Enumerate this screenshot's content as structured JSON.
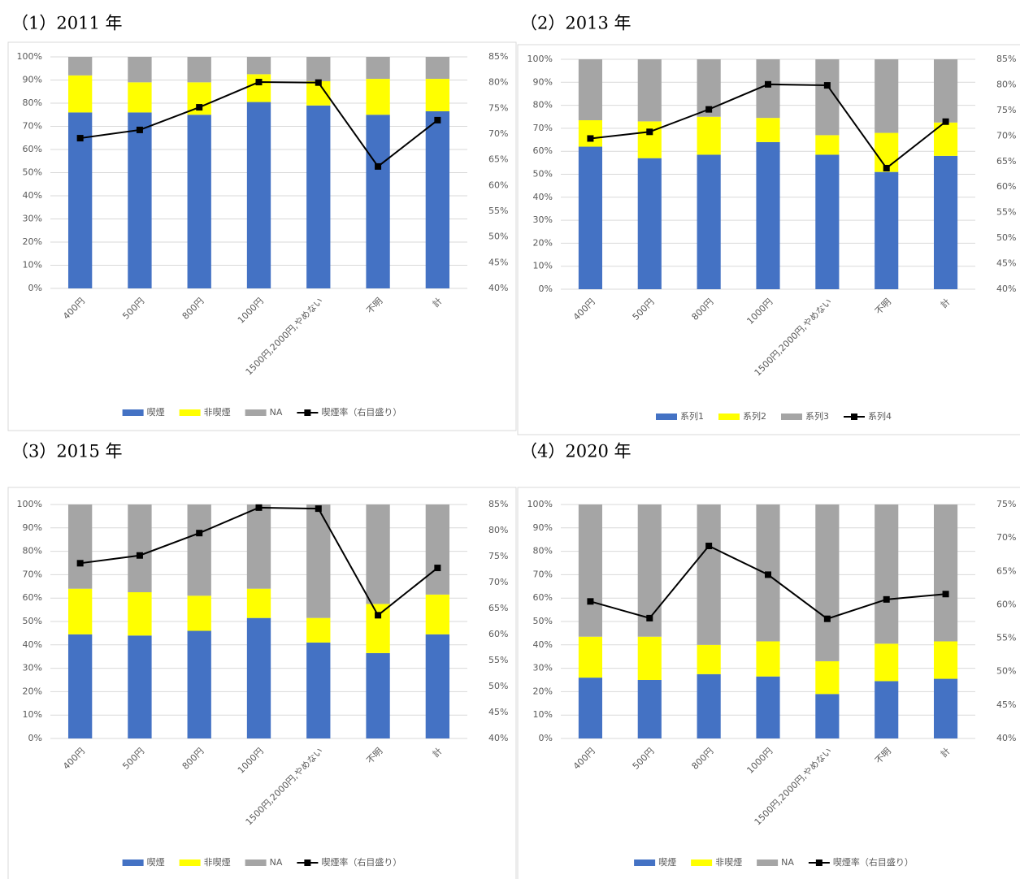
{
  "chart_data": [
    {
      "type": "combo",
      "title": "（1）2011 年",
      "categories": [
        "400円",
        "500円",
        "800円",
        "1000円",
        "1500円,2000円,やめない",
        "不明",
        "計"
      ],
      "series": [
        {
          "name": "喫煙",
          "color": "#4472c4",
          "values": [
            76,
            76,
            75,
            80.5,
            79,
            75,
            76.5
          ]
        },
        {
          "name": "非喫煙",
          "color": "#ffff00",
          "values": [
            16,
            13,
            14,
            12,
            10.5,
            15.5,
            14
          ]
        },
        {
          "name": "NA",
          "color": "#a5a5a5",
          "values": [
            8,
            11,
            11,
            7.5,
            10.5,
            9.5,
            9.5
          ]
        },
        {
          "name": "喫煙率（右目盛り）",
          "color": "#000000",
          "axis": "y2",
          "values": [
            69.2,
            70.8,
            75.2,
            80.1,
            80,
            63.7,
            72.7
          ]
        }
      ],
      "ylim": [
        0,
        100
      ],
      "yticks": [
        {
          "value": 0,
          "label": "0%"
        },
        {
          "value": 10,
          "label": "10%"
        },
        {
          "value": 20,
          "label": "20%"
        },
        {
          "value": 30,
          "label": "30%"
        },
        {
          "value": 40,
          "label": "40%"
        },
        {
          "value": 50,
          "label": "50%"
        },
        {
          "value": 60,
          "label": "60%"
        },
        {
          "value": 70,
          "label": "70%"
        },
        {
          "value": 80,
          "label": "80%"
        },
        {
          "value": 90,
          "label": "90%"
        },
        {
          "value": 100,
          "label": "100%"
        }
      ],
      "y2lim": [
        40,
        85
      ],
      "y2ticks": [
        {
          "value": 40,
          "label": "40%"
        },
        {
          "value": 45,
          "label": "45%"
        },
        {
          "value": 50,
          "label": "50%"
        },
        {
          "value": 55,
          "label": "55%"
        },
        {
          "value": 60,
          "label": "60%"
        },
        {
          "value": 65,
          "label": "65%"
        },
        {
          "value": 70,
          "label": "70%"
        },
        {
          "value": 75,
          "label": "75%"
        },
        {
          "value": 80,
          "label": "80%"
        },
        {
          "value": 85,
          "label": "85%"
        }
      ],
      "grid": true,
      "legend": "bottom"
    },
    {
      "type": "combo",
      "title": "（2）2013 年",
      "categories": [
        "400円",
        "500円",
        "800円",
        "1000円",
        "1500円,2000円,やめない",
        "不明",
        "計"
      ],
      "series": [
        {
          "name": "系列1",
          "color": "#4472c4",
          "values": [
            62,
            57,
            58.5,
            64,
            58.5,
            51,
            58
          ]
        },
        {
          "name": "系列2",
          "color": "#ffff00",
          "values": [
            11.5,
            16,
            16.5,
            10.5,
            8.5,
            17,
            14.5
          ]
        },
        {
          "name": "系列3",
          "color": "#a5a5a5",
          "values": [
            26.5,
            27,
            25,
            25.5,
            33,
            32,
            27.5
          ]
        },
        {
          "name": "系列4",
          "color": "#000000",
          "axis": "y2",
          "values": [
            69.5,
            70.8,
            75.2,
            80.1,
            79.9,
            63.7,
            72.8
          ]
        }
      ],
      "ylim": [
        0,
        100
      ],
      "yticks": [
        {
          "value": 0,
          "label": "0%"
        },
        {
          "value": 10,
          "label": "10%"
        },
        {
          "value": 20,
          "label": "20%"
        },
        {
          "value": 30,
          "label": "30%"
        },
        {
          "value": 40,
          "label": "40%"
        },
        {
          "value": 50,
          "label": "50%"
        },
        {
          "value": 60,
          "label": "60%"
        },
        {
          "value": 70,
          "label": "70%"
        },
        {
          "value": 80,
          "label": "80%"
        },
        {
          "value": 90,
          "label": "90%"
        },
        {
          "value": 100,
          "label": "100%"
        }
      ],
      "y2lim": [
        40,
        85
      ],
      "y2ticks": [
        {
          "value": 40,
          "label": "40%"
        },
        {
          "value": 45,
          "label": "45%"
        },
        {
          "value": 50,
          "label": "50%"
        },
        {
          "value": 55,
          "label": "55%"
        },
        {
          "value": 60,
          "label": "60%"
        },
        {
          "value": 65,
          "label": "65%"
        },
        {
          "value": 70,
          "label": "70%"
        },
        {
          "value": 75,
          "label": "75%"
        },
        {
          "value": 80,
          "label": "80%"
        },
        {
          "value": 85,
          "label": "85%"
        }
      ],
      "grid": true,
      "legend": "bottom"
    },
    {
      "type": "combo",
      "title": "（3）2015 年",
      "categories": [
        "400円",
        "500円",
        "800円",
        "1000円",
        "1500円,2000円,やめない",
        "不明",
        "計"
      ],
      "series": [
        {
          "name": "喫煙",
          "color": "#4472c4",
          "values": [
            44.5,
            44,
            46,
            51.5,
            41,
            36.5,
            44.5
          ]
        },
        {
          "name": "非喫煙",
          "color": "#ffff00",
          "values": [
            19.5,
            18.5,
            15,
            12.5,
            10.5,
            21,
            17
          ]
        },
        {
          "name": "NA",
          "color": "#a5a5a5",
          "values": [
            36,
            37.5,
            39,
            36,
            48.5,
            42.5,
            38.5
          ]
        },
        {
          "name": "喫煙率（右目盛り）",
          "color": "#000000",
          "axis": "y2",
          "values": [
            73.7,
            75.2,
            79.5,
            84.4,
            84.2,
            63.7,
            72.8
          ]
        }
      ],
      "ylim": [
        0,
        100
      ],
      "yticks": [
        {
          "value": 0,
          "label": "0%"
        },
        {
          "value": 10,
          "label": "10%"
        },
        {
          "value": 20,
          "label": "20%"
        },
        {
          "value": 30,
          "label": "30%"
        },
        {
          "value": 40,
          "label": "40%"
        },
        {
          "value": 50,
          "label": "50%"
        },
        {
          "value": 60,
          "label": "60%"
        },
        {
          "value": 70,
          "label": "70%"
        },
        {
          "value": 80,
          "label": "80%"
        },
        {
          "value": 90,
          "label": "90%"
        },
        {
          "value": 100,
          "label": "100%"
        }
      ],
      "y2lim": [
        40,
        85
      ],
      "y2ticks": [
        {
          "value": 40,
          "label": "40%"
        },
        {
          "value": 45,
          "label": "45%"
        },
        {
          "value": 50,
          "label": "50%"
        },
        {
          "value": 55,
          "label": "55%"
        },
        {
          "value": 60,
          "label": "60%"
        },
        {
          "value": 65,
          "label": "65%"
        },
        {
          "value": 70,
          "label": "70%"
        },
        {
          "value": 75,
          "label": "75%"
        },
        {
          "value": 80,
          "label": "80%"
        },
        {
          "value": 85,
          "label": "85%"
        }
      ],
      "grid": true,
      "legend": "bottom"
    },
    {
      "type": "combo",
      "title": "（4）2020 年",
      "categories": [
        "400円",
        "500円",
        "800円",
        "1000円",
        "1500円,2000円,やめない",
        "不明",
        "計"
      ],
      "series": [
        {
          "name": "喫煙",
          "color": "#4472c4",
          "values": [
            26,
            25,
            27.5,
            26.5,
            19,
            24.5,
            25.5
          ]
        },
        {
          "name": "非喫煙",
          "color": "#ffff00",
          "values": [
            17.5,
            18.5,
            12.5,
            15,
            14,
            16,
            16
          ]
        },
        {
          "name": "NA",
          "color": "#a5a5a5",
          "values": [
            56.5,
            56.5,
            60,
            58.5,
            67,
            59.5,
            58.5
          ]
        },
        {
          "name": "喫煙率（右目盛り）",
          "color": "#000000",
          "axis": "y2",
          "values": [
            60.5,
            58,
            68.8,
            64.5,
            57.9,
            60.8,
            61.6
          ]
        }
      ],
      "ylim": [
        0,
        100
      ],
      "yticks": [
        {
          "value": 0,
          "label": "0%"
        },
        {
          "value": 10,
          "label": "10%"
        },
        {
          "value": 20,
          "label": "20%"
        },
        {
          "value": 30,
          "label": "30%"
        },
        {
          "value": 40,
          "label": "40%"
        },
        {
          "value": 50,
          "label": "50%"
        },
        {
          "value": 60,
          "label": "60%"
        },
        {
          "value": 70,
          "label": "70%"
        },
        {
          "value": 80,
          "label": "80%"
        },
        {
          "value": 90,
          "label": "90%"
        },
        {
          "value": 100,
          "label": "100%"
        }
      ],
      "y2lim": [
        40,
        75
      ],
      "y2ticks": [
        {
          "value": 40,
          "label": "40%"
        },
        {
          "value": 45,
          "label": "45%"
        },
        {
          "value": 50,
          "label": "50%"
        },
        {
          "value": 55,
          "label": "55%"
        },
        {
          "value": 60,
          "label": "60%"
        },
        {
          "value": 65,
          "label": "65%"
        },
        {
          "value": 70,
          "label": "70%"
        },
        {
          "value": 75,
          "label": "75%"
        }
      ],
      "grid": true,
      "legend": "bottom"
    }
  ]
}
